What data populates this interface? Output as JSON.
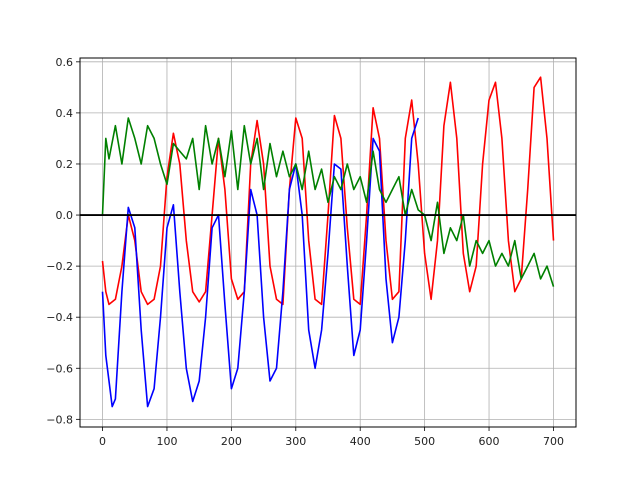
{
  "chart_data": {
    "type": "line",
    "title": "",
    "xlabel": "",
    "ylabel": "",
    "xlim": [
      -35,
      735
    ],
    "ylim": [
      -0.83,
      0.615
    ],
    "grid": true,
    "x_ticks": [
      0,
      100,
      200,
      300,
      400,
      500,
      600,
      700
    ],
    "y_ticks": [
      -0.8,
      -0.6,
      -0.4,
      -0.2,
      0.0,
      0.2,
      0.4,
      0.6
    ],
    "x_tick_labels": [
      "0",
      "100",
      "200",
      "300",
      "400",
      "500",
      "600",
      "700"
    ],
    "y_tick_labels": [
      "−0.8",
      "−0.6",
      "−0.4",
      "−0.2",
      "0.0",
      "0.2",
      "0.4",
      "0.6"
    ],
    "reference_line": {
      "y": 0.0,
      "color": "#000000"
    },
    "series": [
      {
        "color": "#ff0000",
        "x": [
          0,
          5,
          10,
          20,
          30,
          40,
          50,
          60,
          70,
          80,
          90,
          100,
          110,
          120,
          130,
          140,
          150,
          160,
          170,
          180,
          190,
          200,
          210,
          220,
          230,
          240,
          250,
          260,
          270,
          280,
          290,
          300,
          310,
          320,
          330,
          340,
          350,
          360,
          370,
          380,
          390,
          400,
          410,
          420,
          430,
          440,
          450,
          460,
          470,
          480,
          490,
          500,
          510,
          520,
          530,
          540,
          550,
          560,
          570,
          580,
          590,
          600,
          610,
          620,
          630,
          640,
          650,
          660,
          670,
          680,
          690,
          700
        ],
        "y": [
          -0.18,
          -0.3,
          -0.35,
          -0.33,
          -0.2,
          0.0,
          -0.1,
          -0.3,
          -0.35,
          -0.33,
          -0.2,
          0.15,
          0.32,
          0.2,
          -0.1,
          -0.3,
          -0.34,
          -0.3,
          0.0,
          0.3,
          0.1,
          -0.25,
          -0.33,
          -0.3,
          0.2,
          0.37,
          0.2,
          -0.2,
          -0.33,
          -0.35,
          0.1,
          0.38,
          0.3,
          -0.1,
          -0.33,
          -0.35,
          0.0,
          0.39,
          0.3,
          -0.05,
          -0.33,
          -0.35,
          0.0,
          0.42,
          0.3,
          -0.1,
          -0.33,
          -0.3,
          0.3,
          0.45,
          0.2,
          -0.15,
          -0.33,
          -0.1,
          0.35,
          0.52,
          0.3,
          -0.15,
          -0.3,
          -0.2,
          0.2,
          0.45,
          0.52,
          0.3,
          -0.1,
          -0.3,
          -0.25,
          0.1,
          0.5,
          0.54,
          0.3,
          -0.1
        ]
      },
      {
        "color": "#0000ff",
        "x": [
          0,
          5,
          10,
          15,
          20,
          30,
          40,
          50,
          60,
          70,
          80,
          90,
          100,
          110,
          120,
          130,
          140,
          150,
          160,
          170,
          180,
          190,
          200,
          210,
          220,
          230,
          240,
          250,
          260,
          270,
          280,
          290,
          300,
          310,
          320,
          330,
          340,
          350,
          360,
          370,
          380,
          390,
          400,
          410,
          420,
          430,
          440,
          450,
          460,
          470,
          480,
          490
        ],
        "y": [
          -0.3,
          -0.55,
          -0.65,
          -0.75,
          -0.72,
          -0.3,
          0.03,
          -0.05,
          -0.45,
          -0.75,
          -0.68,
          -0.4,
          -0.05,
          0.04,
          -0.3,
          -0.6,
          -0.73,
          -0.65,
          -0.4,
          -0.05,
          0.0,
          -0.35,
          -0.68,
          -0.6,
          -0.3,
          0.1,
          0.0,
          -0.4,
          -0.65,
          -0.6,
          -0.3,
          0.1,
          0.2,
          0.0,
          -0.45,
          -0.6,
          -0.45,
          -0.15,
          0.2,
          0.18,
          -0.2,
          -0.55,
          -0.45,
          -0.1,
          0.3,
          0.25,
          -0.25,
          -0.5,
          -0.4,
          -0.1,
          0.3,
          0.38
        ]
      },
      {
        "color": "#008000",
        "x": [
          0,
          5,
          10,
          20,
          30,
          40,
          50,
          60,
          70,
          80,
          90,
          100,
          110,
          120,
          130,
          140,
          150,
          160,
          170,
          180,
          190,
          200,
          210,
          220,
          230,
          240,
          250,
          260,
          270,
          280,
          290,
          300,
          310,
          320,
          330,
          340,
          350,
          360,
          370,
          380,
          390,
          400,
          410,
          420,
          430,
          440,
          450,
          460,
          470,
          480,
          490,
          500,
          510,
          520,
          530,
          540,
          550,
          560,
          570,
          580,
          590,
          600,
          610,
          620,
          630,
          640,
          650,
          660,
          670,
          680,
          690,
          700
        ],
        "y": [
          0.0,
          0.3,
          0.22,
          0.35,
          0.2,
          0.38,
          0.3,
          0.2,
          0.35,
          0.3,
          0.2,
          0.12,
          0.28,
          0.25,
          0.22,
          0.3,
          0.1,
          0.35,
          0.2,
          0.3,
          0.15,
          0.33,
          0.1,
          0.35,
          0.2,
          0.3,
          0.1,
          0.28,
          0.15,
          0.25,
          0.15,
          0.2,
          0.1,
          0.25,
          0.1,
          0.18,
          0.05,
          0.15,
          0.1,
          0.2,
          0.1,
          0.15,
          0.05,
          0.25,
          0.1,
          0.05,
          0.1,
          0.15,
          0.0,
          0.1,
          0.02,
          0.0,
          -0.1,
          0.05,
          -0.15,
          -0.05,
          -0.1,
          0.0,
          -0.2,
          -0.1,
          -0.15,
          -0.1,
          -0.2,
          -0.15,
          -0.2,
          -0.1,
          -0.25,
          -0.2,
          -0.15,
          -0.25,
          -0.2,
          -0.28
        ]
      }
    ]
  }
}
